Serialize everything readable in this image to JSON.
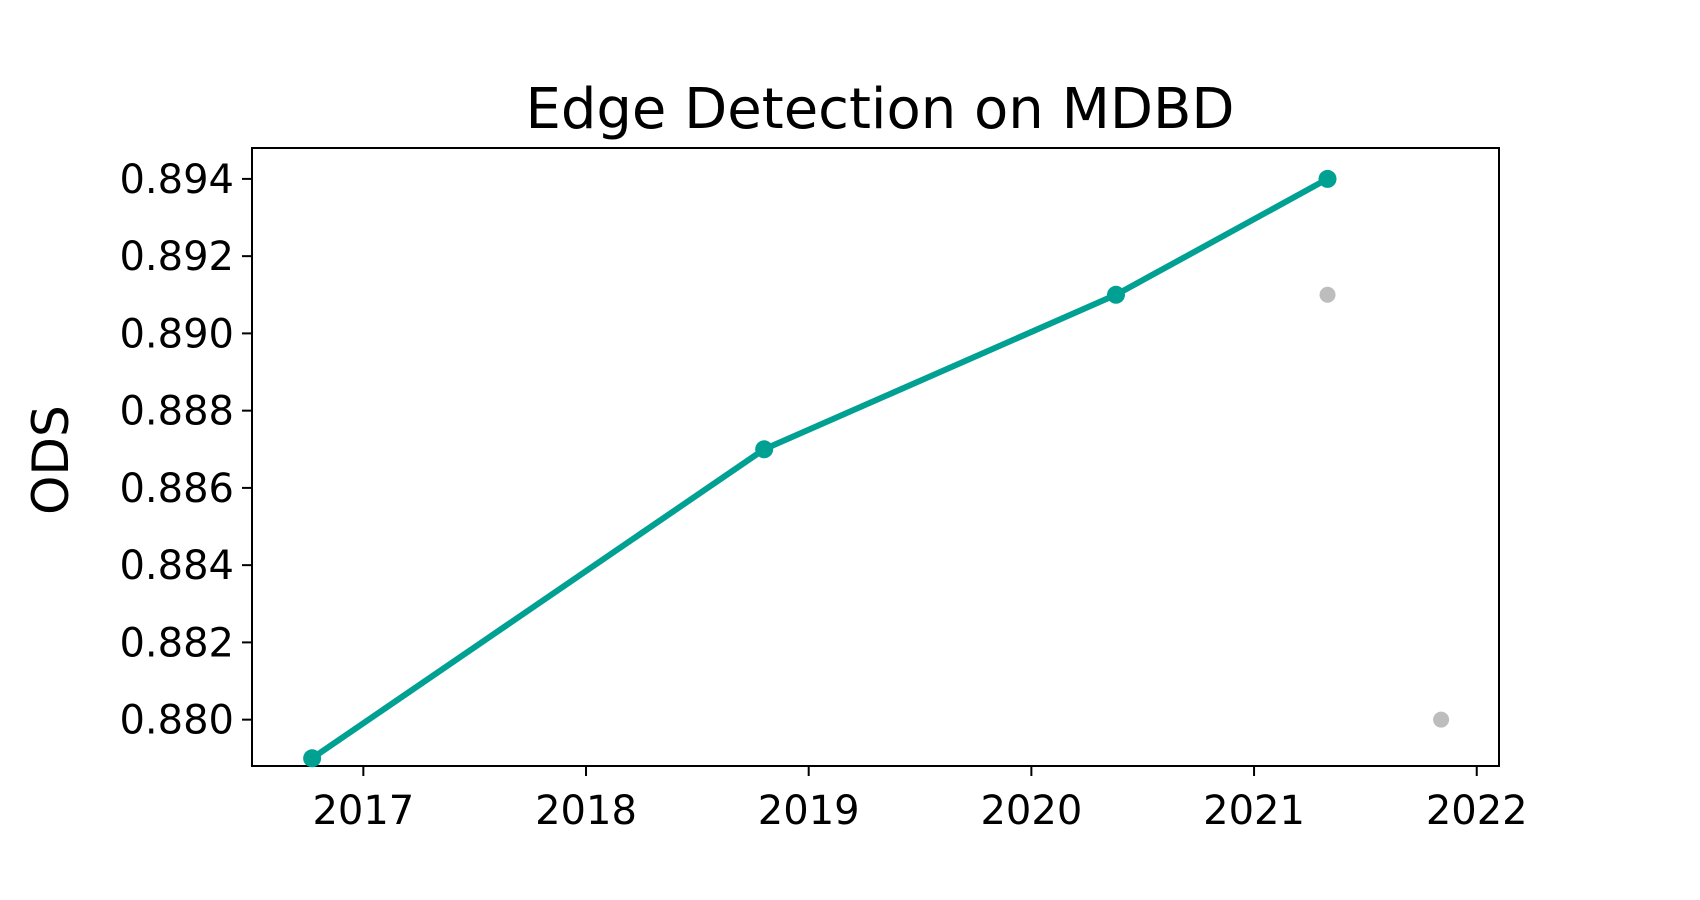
{
  "chart_data": {
    "type": "line",
    "title": "Edge Detection on MDBD",
    "xlabel": "",
    "ylabel": "ODS",
    "xlim": [
      2016.5,
      2022.1
    ],
    "ylim": [
      0.8788,
      0.8948
    ],
    "x_ticks": [
      2017,
      2018,
      2019,
      2020,
      2021,
      2022
    ],
    "y_ticks": [
      "0.880",
      "0.882",
      "0.884",
      "0.886",
      "0.888",
      "0.890",
      "0.892",
      "0.894"
    ],
    "grid": false,
    "colors": {
      "main_line": "#00a193",
      "other_points": "#bdbdbd",
      "axes": "#000000"
    },
    "series": [
      {
        "style": "line-with-markers",
        "points": [
          {
            "x": 2016.77,
            "y": 0.879
          },
          {
            "x": 2018.8,
            "y": 0.887
          },
          {
            "x": 2020.38,
            "y": 0.891
          },
          {
            "x": 2021.33,
            "y": 0.894
          }
        ]
      },
      {
        "style": "scatter",
        "points": [
          {
            "x": 2021.33,
            "y": 0.891
          },
          {
            "x": 2021.84,
            "y": 0.88
          }
        ]
      }
    ]
  }
}
